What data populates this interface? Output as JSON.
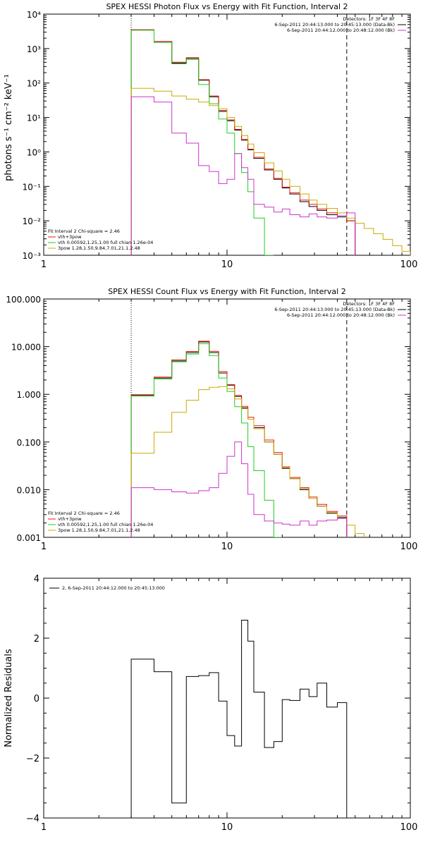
{
  "chart_data": [
    {
      "type": "line",
      "title": "SPEX HESSI Photon Flux vs Energy with Fit Function, Interval 2",
      "ylabel": "photons s⁻¹ cm⁻² keV⁻¹",
      "xlabel": "",
      "xscale": "log",
      "yscale": "log",
      "xlim": [
        1,
        100
      ],
      "ylim": [
        0.001,
        10000
      ],
      "xticks": [
        "1",
        "10",
        "100"
      ],
      "yticks": [
        "10⁻³",
        "10⁻²",
        "10⁻¹",
        "10⁰",
        "10¹",
        "10²",
        "10³",
        "10⁴"
      ],
      "vlines": [
        {
          "x": 3,
          "style": "dotted"
        },
        {
          "x": 45,
          "style": "dashed"
        }
      ],
      "legend_top": [
        "Detectors: 1F 3F 4F 8F",
        "6-Sep-2011 20:44:13.000 to 20:45:13.000 (Data-Bk)",
        "6-Sep-2011 20:44:12.000 to 20:48:12.000 (Bk)"
      ],
      "legend_bottom": [
        "Fit Interval 2   Chi-square = 2.46",
        "vth+3pow",
        "vth 0.00592,1.25,1.00  full chian 1.26e-04",
        "3pow 1.28,1.50,9.84,7.01,21.1,2.48"
      ],
      "edges": [
        3,
        4,
        5,
        6,
        7,
        8,
        9,
        10,
        11,
        12,
        13,
        14,
        16,
        18,
        20,
        22,
        25,
        28,
        31,
        35,
        40,
        45,
        50,
        56,
        63,
        71,
        80,
        90,
        100
      ],
      "series": [
        {
          "color": "#000000",
          "values": [
            3500,
            1600,
            380,
            520,
            120,
            40,
            15,
            8,
            4.3,
            2.2,
            1.15,
            0.65,
            0.3,
            0.16,
            0.09,
            0.06,
            0.036,
            0.026,
            0.02,
            0.015,
            0.013,
            0.01
          ]
        },
        {
          "color": "#ee1111",
          "values": [
            3500,
            1600,
            400,
            540,
            125,
            42,
            16,
            8.5,
            4.5,
            2.3,
            1.2,
            0.7,
            0.32,
            0.17,
            0.095,
            0.065,
            0.04,
            0.03,
            0.022,
            0.017,
            0.014,
            0.01
          ]
        },
        {
          "color": "#22cc22",
          "values": [
            3400,
            1500,
            360,
            480,
            90,
            25,
            9,
            3.5,
            0.9,
            0.25,
            0.07,
            0.012,
            0.001
          ]
        },
        {
          "color": "#ccaa00",
          "values": [
            70,
            58,
            42,
            34,
            28,
            22,
            18,
            10,
            5.5,
            3,
            1.7,
            0.95,
            0.48,
            0.28,
            0.16,
            0.1,
            0.06,
            0.04,
            0.03,
            0.023,
            0.017,
            0.012,
            0.0085,
            0.006,
            0.0042,
            0.0029,
            0.0019,
            0.0013
          ]
        },
        {
          "color": "#cc33cc",
          "values": [
            40,
            28,
            3.5,
            1.8,
            0.4,
            0.27,
            0.12,
            0.16,
            0.9,
            0.35,
            0.16,
            0.03,
            0.025,
            0.018,
            0.022,
            0.015,
            0.013,
            0.016,
            0.013,
            0.012,
            0.014,
            0.017
          ]
        }
      ]
    },
    {
      "type": "line",
      "title": "SPEX HESSI Count Flux vs Energy with Fit Function, Interval 2",
      "ylabel": "",
      "xlabel": "",
      "xscale": "log",
      "yscale": "log",
      "xlim": [
        1,
        100
      ],
      "ylim": [
        0.001,
        100
      ],
      "xticks": [
        "1",
        "10",
        "100"
      ],
      "yticks": [
        "0.001",
        "0.010",
        "0.100",
        "1.000",
        "10.000",
        "100.000"
      ],
      "vlines": [
        {
          "x": 3,
          "style": "dotted"
        },
        {
          "x": 45,
          "style": "dashed"
        }
      ],
      "legend_top": [
        "Detectors: 1F 3F 4F 8F",
        "6-Sep-2011 20:44:13.000 to 20:45:13.000 (Data-Bk)",
        "6-Sep-2011 20:44:12.000 to 20:48:12.000 (Bk)"
      ],
      "legend_bottom": [
        "Fit Interval 2   Chi-square = 2.46",
        "vth+3pow",
        "vth 0.00592,1.25,1.00  full chian 1.26e-04",
        "3pow 1.28,1.50,9.84,7.01,21.1,2.48"
      ],
      "edges": [
        3,
        4,
        5,
        6,
        7,
        8,
        9,
        10,
        11,
        12,
        13,
        14,
        16,
        18,
        20,
        22,
        25,
        28,
        31,
        35,
        40,
        45,
        50,
        56
      ],
      "series": [
        {
          "color": "#000000",
          "values": [
            0.95,
            2.2,
            5,
            7.5,
            12.5,
            7.5,
            2.8,
            1.55,
            0.9,
            0.52,
            0.3,
            0.2,
            0.1,
            0.055,
            0.028,
            0.017,
            0.01,
            0.0065,
            0.0045,
            0.0032,
            0.0026
          ]
        },
        {
          "color": "#ee1111",
          "values": [
            0.98,
            2.3,
            5.3,
            7.9,
            13,
            8,
            3,
            1.6,
            0.95,
            0.56,
            0.33,
            0.22,
            0.11,
            0.06,
            0.03,
            0.018,
            0.011,
            0.007,
            0.0049,
            0.0035,
            0.0028
          ]
        },
        {
          "color": "#22cc22",
          "values": [
            0.92,
            2.1,
            4.8,
            7,
            11.5,
            6.5,
            2.2,
            1.15,
            0.55,
            0.25,
            0.08,
            0.025,
            0.006,
            0.001
          ]
        },
        {
          "color": "#ccaa00",
          "values": [
            0.058,
            0.16,
            0.42,
            0.75,
            1.25,
            1.4,
            1.45,
            1.3,
            0.8,
            0.5,
            0.3,
            0.19,
            0.1,
            0.055,
            0.029,
            0.017,
            0.0105,
            0.0065,
            0.0045,
            0.0033,
            0.0025,
            0.0018,
            0.0012
          ]
        },
        {
          "color": "#cc33cc",
          "values": [
            0.011,
            0.01,
            0.009,
            0.0085,
            0.0095,
            0.011,
            0.022,
            0.05,
            0.1,
            0.035,
            0.008,
            0.003,
            0.0022,
            0.002,
            0.0019,
            0.0018,
            0.0022,
            0.0018,
            0.0022,
            0.0023,
            0.0025
          ]
        }
      ]
    },
    {
      "type": "line",
      "title": "",
      "ylabel": "Normalized Residuals",
      "xlabel": "",
      "xscale": "log",
      "yscale": "linear",
      "xlim": [
        1,
        100
      ],
      "ylim": [
        -4,
        4
      ],
      "xticks": [
        "1",
        "10",
        "100"
      ],
      "yticks": [
        "−4",
        "−2",
        "0",
        "2",
        "4"
      ],
      "legend": [
        "2, 6-Sep-2011 20:44:12.000 to 20:45:13.000"
      ],
      "edges": [
        3,
        4,
        5,
        6,
        7,
        8,
        9,
        10,
        11,
        12,
        13,
        14,
        16,
        18,
        20,
        22,
        25,
        28,
        31,
        35,
        40,
        45
      ],
      "series": [
        {
          "color": "#000000",
          "values": [
            1.3,
            0.88,
            -3.5,
            0.72,
            0.75,
            0.85,
            -0.1,
            -1.25,
            -1.6,
            2.6,
            1.9,
            0.2,
            -1.65,
            -1.45,
            -0.05,
            -0.08,
            0.3,
            0.05,
            0.5,
            -0.3,
            -0.15
          ]
        }
      ]
    }
  ]
}
